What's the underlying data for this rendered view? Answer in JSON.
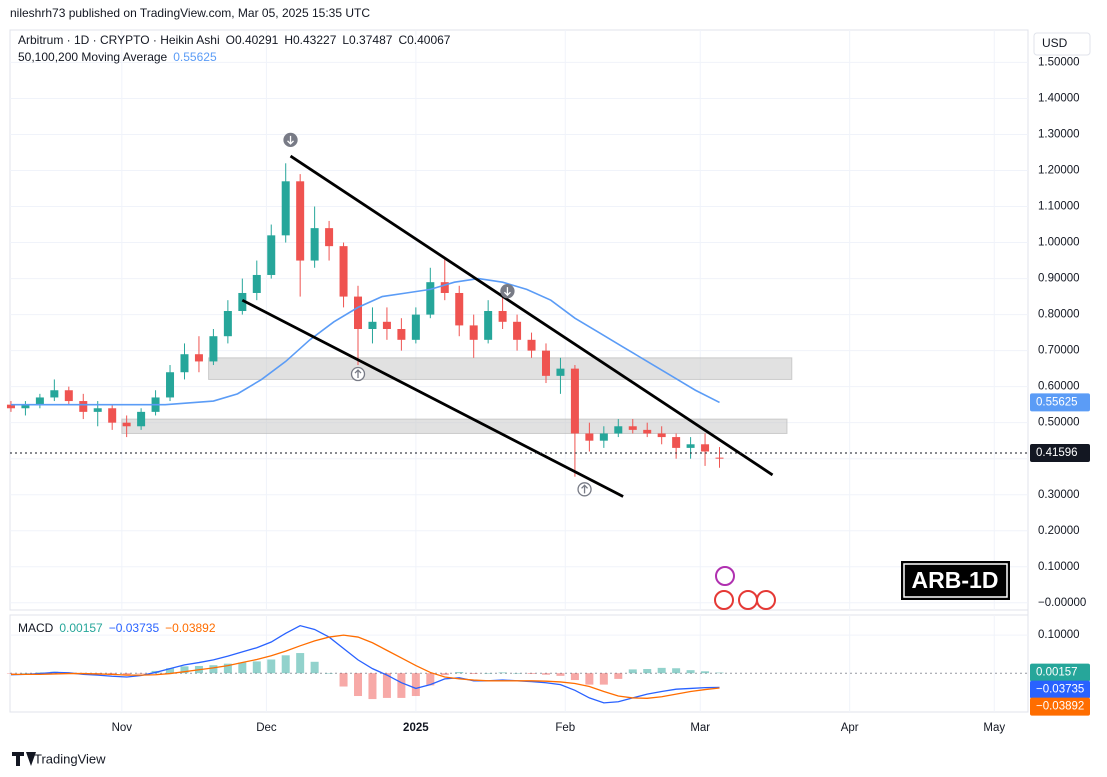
{
  "header": {
    "publisher": "nileshrh73 published on TradingView.com, Mar 05, 2025 15:35 UTC",
    "symbol": "Arbitrum · 1D · CRYPTO · Heikin Ashi",
    "ohlc": [
      "O0.40291",
      "H0.43227",
      "L0.37487",
      "C0.40067"
    ],
    "currency": "USD",
    "badge": "ARB-1D"
  },
  "footer": {
    "brand": "TradingView"
  },
  "chart_data": [
    {
      "type": "candlestick",
      "up_color": "#26a69a",
      "down_color": "#ef5350",
      "grid": true,
      "xlim": [
        7.8,
        219
      ],
      "xticks": [
        {
          "value": 31,
          "label": "Nov"
        },
        {
          "value": 61,
          "label": "Dec"
        },
        {
          "value": 92,
          "label": "2025"
        },
        {
          "value": 123,
          "label": "Feb"
        },
        {
          "value": 151,
          "label": "Mar"
        },
        {
          "value": 182,
          "label": "Apr"
        },
        {
          "value": 212,
          "label": "May"
        }
      ],
      "ylim": [
        -0.02,
        1.59
      ],
      "yticks": [
        {
          "value": 0,
          "label": "−0.00000"
        },
        {
          "value": 0.1,
          "label": "0.10000"
        },
        {
          "value": 0.2,
          "label": "0.20000"
        },
        {
          "value": 0.3,
          "label": "0.30000"
        },
        {
          "value": 0.4,
          "label": "0.40000"
        },
        {
          "value": 0.5,
          "label": "0.50000"
        },
        {
          "value": 0.6,
          "label": "0.60000"
        },
        {
          "value": 0.7,
          "label": "0.70000"
        },
        {
          "value": 0.8,
          "label": "0.80000"
        },
        {
          "value": 0.9,
          "label": "0.90000"
        },
        {
          "value": 1.0,
          "label": "1.00000"
        },
        {
          "value": 1.1,
          "label": "1.10000"
        },
        {
          "value": 1.2,
          "label": "1.20000"
        },
        {
          "value": 1.3,
          "label": "1.30000"
        },
        {
          "value": 1.4,
          "label": "1.40000"
        },
        {
          "value": 1.5,
          "label": "1.50000"
        }
      ],
      "candles": {
        "x": [
          8,
          11,
          14,
          17,
          20,
          23,
          26,
          29,
          32,
          35,
          38,
          41,
          44,
          47,
          50,
          53,
          56,
          59,
          62,
          65,
          68,
          71,
          74,
          77,
          80,
          83,
          86,
          89,
          92,
          95,
          98,
          101,
          104,
          107,
          110,
          113,
          116,
          119,
          122,
          125,
          128,
          131,
          134,
          137,
          140,
          143,
          146,
          149,
          152,
          155
        ],
        "open": [
          0.55,
          0.54,
          0.55,
          0.57,
          0.59,
          0.56,
          0.53,
          0.54,
          0.5,
          0.49,
          0.53,
          0.57,
          0.64,
          0.69,
          0.67,
          0.74,
          0.81,
          0.86,
          0.91,
          1.02,
          1.17,
          0.95,
          1.04,
          0.99,
          0.85,
          0.76,
          0.78,
          0.76,
          0.73,
          0.8,
          0.89,
          0.86,
          0.77,
          0.73,
          0.81,
          0.78,
          0.73,
          0.7,
          0.63,
          0.65,
          0.47,
          0.45,
          0.47,
          0.49,
          0.48,
          0.47,
          0.46,
          0.43,
          0.44,
          0.40291
        ],
        "high": [
          0.56,
          0.56,
          0.58,
          0.62,
          0.6,
          0.58,
          0.56,
          0.55,
          0.52,
          0.54,
          0.59,
          0.66,
          0.72,
          0.74,
          0.76,
          0.84,
          0.9,
          0.95,
          1.05,
          1.22,
          1.19,
          1.1,
          1.06,
          1.0,
          0.88,
          0.82,
          0.82,
          0.79,
          0.82,
          0.93,
          0.96,
          0.88,
          0.8,
          0.84,
          0.85,
          0.8,
          0.75,
          0.72,
          0.68,
          0.66,
          0.5,
          0.49,
          0.51,
          0.51,
          0.5,
          0.49,
          0.47,
          0.46,
          0.47,
          0.43227
        ],
        "low": [
          0.53,
          0.52,
          0.54,
          0.56,
          0.55,
          0.51,
          0.49,
          0.48,
          0.46,
          0.48,
          0.52,
          0.56,
          0.62,
          0.64,
          0.66,
          0.72,
          0.8,
          0.84,
          0.9,
          1.0,
          0.85,
          0.93,
          0.95,
          0.82,
          0.66,
          0.72,
          0.73,
          0.7,
          0.72,
          0.79,
          0.84,
          0.74,
          0.68,
          0.72,
          0.76,
          0.7,
          0.68,
          0.61,
          0.58,
          0.35,
          0.42,
          0.43,
          0.46,
          0.47,
          0.46,
          0.44,
          0.4,
          0.4,
          0.38,
          0.37487
        ],
        "close": [
          0.54,
          0.55,
          0.57,
          0.59,
          0.56,
          0.53,
          0.54,
          0.5,
          0.49,
          0.53,
          0.57,
          0.64,
          0.69,
          0.67,
          0.74,
          0.81,
          0.86,
          0.91,
          1.02,
          1.17,
          0.95,
          1.04,
          0.99,
          0.85,
          0.76,
          0.78,
          0.76,
          0.73,
          0.8,
          0.89,
          0.86,
          0.77,
          0.73,
          0.81,
          0.78,
          0.73,
          0.7,
          0.63,
          0.65,
          0.47,
          0.45,
          0.47,
          0.49,
          0.48,
          0.47,
          0.46,
          0.43,
          0.44,
          0.42,
          0.40067
        ]
      },
      "ma": {
        "name": "50,100,200 Moving Average",
        "color": "#5b9cf6",
        "x": [
          8,
          25,
          40,
          50,
          55,
          60,
          65,
          70,
          75,
          80,
          85,
          90,
          95,
          100,
          105,
          110,
          115,
          120,
          125,
          130,
          135,
          140,
          145,
          150,
          155
        ],
        "values": [
          0.55,
          0.55,
          0.55,
          0.56,
          0.58,
          0.62,
          0.67,
          0.73,
          0.78,
          0.82,
          0.85,
          0.86,
          0.87,
          0.89,
          0.9,
          0.89,
          0.87,
          0.84,
          0.79,
          0.75,
          0.71,
          0.67,
          0.63,
          0.59,
          0.55625
        ]
      },
      "last_price": 0.41596,
      "trendlines": [
        {
          "x": [
            66,
            166
          ],
          "y": [
            1.24,
            0.355
          ]
        },
        {
          "x": [
            56,
            135
          ],
          "y": [
            0.84,
            0.295
          ]
        }
      ],
      "zones": [
        {
          "x": [
            49,
            170
          ],
          "y": [
            0.62,
            0.68
          ]
        },
        {
          "x": [
            31,
            169
          ],
          "y": [
            0.47,
            0.51
          ]
        }
      ],
      "markers": [
        {
          "x": 66,
          "y": 1.285,
          "dir": "down"
        },
        {
          "x": 111,
          "y": 0.865,
          "dir": "down"
        },
        {
          "x": 80,
          "y": 0.635,
          "dir": "up"
        },
        {
          "x": 127,
          "y": 0.315,
          "dir": "up"
        }
      ]
    },
    {
      "type": "macd",
      "title": "MACD",
      "ylim": [
        -0.102,
        0.153
      ],
      "yticks": [
        {
          "value": 0.1,
          "label": "0.10000"
        }
      ],
      "legend": [
        {
          "value": 0.00157,
          "label": "0.00157",
          "color": "#26a69a"
        },
        {
          "value": -0.03735,
          "label": "−0.03735",
          "color": "#2962ff"
        },
        {
          "value": -0.03892,
          "label": "−0.03892",
          "color": "#ff6d00"
        }
      ],
      "histogram": {
        "up_color": "#26a69a",
        "down_color": "#ef5350",
        "values": [
          -0.001,
          0,
          0.002,
          0.004,
          0.002,
          -0.002,
          -0.003,
          -0.005,
          -0.005,
          -0.001,
          0.006,
          0.013,
          0.018,
          0.019,
          0.021,
          0.025,
          0.028,
          0.031,
          0.036,
          0.047,
          0.053,
          0.03,
          0,
          -0.035,
          -0.06,
          -0.068,
          -0.065,
          -0.065,
          -0.06,
          -0.032,
          -0.005,
          0.003,
          -0.002,
          0,
          0.002,
          0,
          -0.002,
          -0.004,
          -0.007,
          -0.018,
          -0.03,
          -0.03,
          -0.015,
          0.01,
          0.011,
          0.014,
          0.013,
          0.008,
          0.005,
          0.00157
        ]
      },
      "series": [
        {
          "name": "MACD",
          "color": "#2962ff",
          "values": [
            -0.004,
            -0.003,
            -0.001,
            0.002,
            0.001,
            -0.003,
            -0.005,
            -0.008,
            -0.01,
            -0.006,
            0.002,
            0.012,
            0.022,
            0.028,
            0.035,
            0.045,
            0.056,
            0.067,
            0.082,
            0.105,
            0.125,
            0.115,
            0.095,
            0.065,
            0.035,
            0.012,
            -0.005,
            -0.025,
            -0.04,
            -0.03,
            -0.015,
            -0.012,
            -0.02,
            -0.02,
            -0.018,
            -0.02,
            -0.022,
            -0.025,
            -0.03,
            -0.045,
            -0.065,
            -0.078,
            -0.075,
            -0.065,
            -0.055,
            -0.048,
            -0.042,
            -0.04,
            -0.038,
            -0.03735
          ]
        },
        {
          "name": "Signal",
          "color": "#ff6d00",
          "values": [
            -0.003,
            -0.003,
            -0.003,
            -0.002,
            -0.001,
            -0.001,
            -0.002,
            -0.003,
            -0.005,
            -0.005,
            -0.004,
            -0.001,
            0.004,
            0.009,
            0.014,
            0.02,
            0.028,
            0.036,
            0.046,
            0.058,
            0.072,
            0.085,
            0.095,
            0.1,
            0.095,
            0.08,
            0.06,
            0.04,
            0.02,
            0.002,
            -0.01,
            -0.015,
            -0.018,
            -0.02,
            -0.02,
            -0.02,
            -0.02,
            -0.021,
            -0.023,
            -0.027,
            -0.035,
            -0.048,
            -0.06,
            -0.065,
            -0.066,
            -0.062,
            -0.055,
            -0.048,
            -0.043,
            -0.03892
          ]
        }
      ]
    }
  ]
}
